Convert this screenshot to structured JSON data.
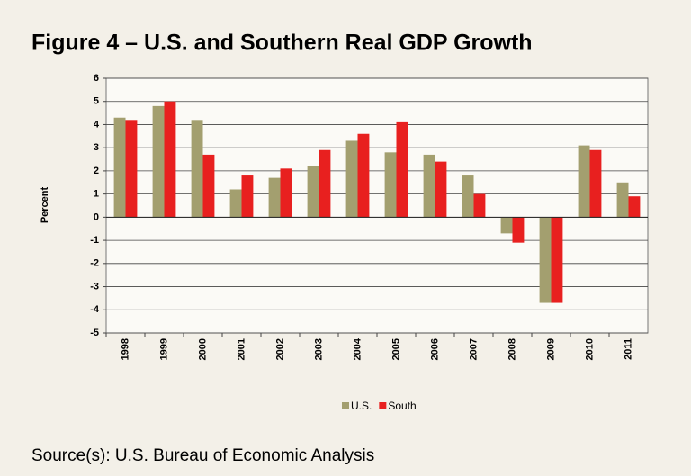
{
  "chart_data": {
    "type": "bar",
    "title": "Figure 4 – U.S. and Southern Real GDP Growth",
    "y_label": "Percent",
    "source": "Source(s): U.S. Bureau of Economic Analysis",
    "categories": [
      "1998",
      "1999",
      "2000",
      "2001",
      "2002",
      "2003",
      "2004",
      "2005",
      "2006",
      "2007",
      "2008",
      "2009",
      "2010",
      "2011"
    ],
    "series": [
      {
        "name": "U.S.",
        "color": "#a39f6f",
        "values": [
          4.3,
          4.8,
          4.2,
          1.2,
          1.7,
          2.2,
          3.3,
          2.8,
          2.7,
          1.8,
          -0.7,
          -3.7,
          3.1,
          1.5
        ]
      },
      {
        "name": "South",
        "color": "#e8201f",
        "values": [
          4.2,
          5.0,
          2.7,
          1.8,
          2.1,
          2.9,
          3.6,
          4.1,
          2.4,
          1.0,
          -1.1,
          -3.7,
          2.9,
          0.9
        ]
      }
    ],
    "ylim": [
      -5,
      6
    ],
    "yticks": [
      -5,
      -4,
      -3,
      -2,
      -1,
      0,
      1,
      2,
      3,
      4,
      5,
      6
    ],
    "grid": true,
    "legend": "bottom"
  }
}
